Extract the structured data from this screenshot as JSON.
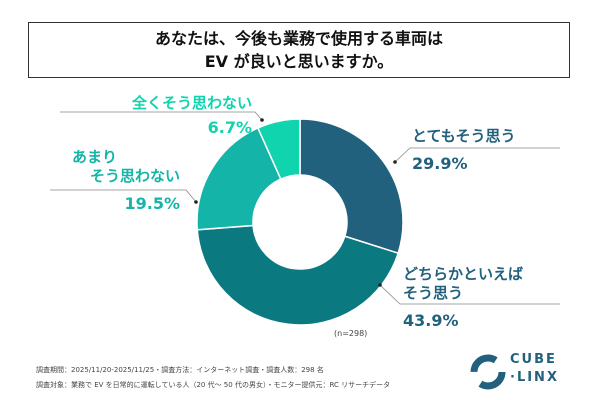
{
  "title": {
    "line1": "あなたは、今後も業務で使用する車両は",
    "line2": "EV が良いと思いますか。"
  },
  "chart_data": {
    "type": "pie",
    "donut": true,
    "title": "あなたは、今後も業務で使用する車両は EV が良いと思いますか。",
    "categories": [
      "とてもそう思う",
      "どちらかといえばそう思う",
      "あまりそう思わない",
      "全くそう思わない"
    ],
    "values": [
      29.9,
      43.9,
      19.5,
      6.7
    ],
    "labels": [
      "29.9%",
      "43.9%",
      "19.5%",
      "6.7%"
    ],
    "colors": [
      "#22617e",
      "#0b7a80",
      "#14b4a8",
      "#0fd4ad"
    ],
    "legend": "none"
  },
  "labels": {
    "s0": "とてもそう思う",
    "s1a": "どちらかといえば",
    "s1b": "そう思う",
    "s2a": "あまり",
    "s2b": "そう思わない",
    "s3": "全くそう思わない"
  },
  "sample_size": "(n=298)",
  "footer": {
    "line1": "調査期間：2025/11/20-2025/11/25・調査方法：インターネット調査・調査人数：298 名",
    "line2": "調査対象：業務で EV を日常的に運転している人（20 代～ 50 代の男女）・モニター提供元：RC リサーチデータ"
  },
  "logo": {
    "line1": "CUBE",
    "line2": "·LINX"
  }
}
